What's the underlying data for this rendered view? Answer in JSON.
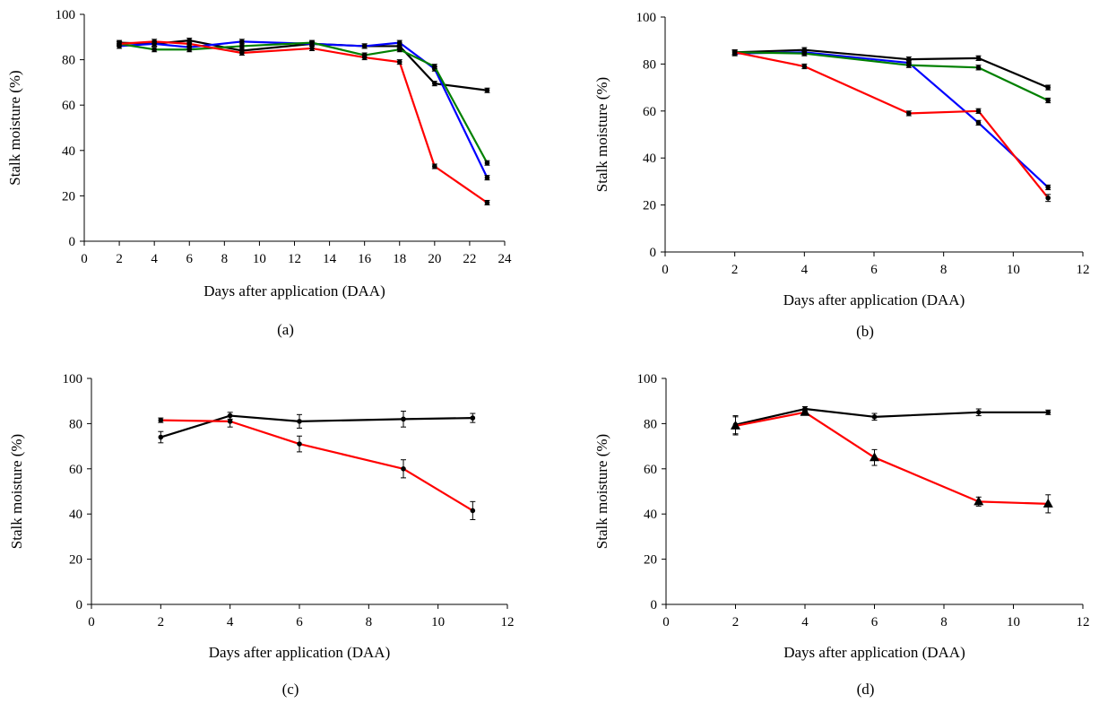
{
  "chart_data": [
    {
      "panel": "(a)",
      "type": "line",
      "xlabel": "Days after application (DAA)",
      "ylabel": "Stalk moisture (%)",
      "xlim": [
        0,
        24
      ],
      "xticks": [
        0,
        2,
        4,
        6,
        8,
        10,
        12,
        14,
        16,
        18,
        20,
        22,
        24
      ],
      "ylim": [
        0,
        100
      ],
      "yticks": [
        0,
        20,
        40,
        60,
        80,
        100
      ],
      "grid": false,
      "series": [
        {
          "color": "#000000",
          "x": [
            2,
            4,
            6,
            9,
            13,
            16,
            18,
            20,
            23
          ],
          "y": [
            87.5,
            87,
            88.5,
            84,
            87,
            86,
            86,
            69.5,
            66.5
          ],
          "err": [
            1,
            1,
            1,
            1,
            1,
            1,
            1,
            1,
            1
          ],
          "marker": "dot"
        },
        {
          "color": "#0000ff",
          "x": [
            2,
            4,
            6,
            9,
            13,
            16,
            18,
            20,
            23
          ],
          "y": [
            86,
            87,
            85.5,
            88,
            87,
            86,
            87.5,
            76,
            28
          ],
          "err": [
            1,
            1,
            1,
            1,
            1,
            1,
            1,
            1,
            1
          ],
          "marker": "dot"
        },
        {
          "color": "#008000",
          "x": [
            2,
            4,
            6,
            9,
            13,
            16,
            18,
            20,
            23
          ],
          "y": [
            87,
            84.5,
            84.5,
            86,
            87.5,
            82,
            84.5,
            77,
            34.5
          ],
          "err": [
            1,
            1,
            1,
            1,
            1,
            1,
            1,
            1,
            1
          ],
          "marker": "dot"
        },
        {
          "color": "#ff0000",
          "x": [
            2,
            4,
            6,
            9,
            13,
            16,
            18,
            20,
            23
          ],
          "y": [
            87,
            88,
            87,
            83,
            85,
            81,
            79,
            33,
            17
          ],
          "err": [
            1,
            1,
            1,
            1,
            1,
            1,
            1,
            1,
            1
          ],
          "marker": "dot"
        }
      ]
    },
    {
      "panel": "(b)",
      "type": "line",
      "xlabel": "Days after application (DAA)",
      "ylabel": "Stalk moisture (%)",
      "xlim": [
        0,
        12
      ],
      "xticks": [
        0,
        2,
        4,
        6,
        8,
        10,
        12
      ],
      "ylim": [
        0,
        100
      ],
      "yticks": [
        0,
        20,
        40,
        60,
        80,
        100
      ],
      "grid": false,
      "series": [
        {
          "color": "#000000",
          "x": [
            2,
            4,
            7,
            9,
            11
          ],
          "y": [
            85,
            86,
            82,
            82.5,
            70
          ],
          "err": [
            1,
            1,
            1,
            1,
            1
          ],
          "marker": "dot"
        },
        {
          "color": "#0000ff",
          "x": [
            2,
            4,
            7,
            9,
            11
          ],
          "y": [
            84.5,
            85,
            80.5,
            55,
            27.5
          ],
          "err": [
            1,
            1,
            1,
            1,
            1
          ],
          "marker": "dot"
        },
        {
          "color": "#008000",
          "x": [
            2,
            4,
            7,
            9,
            11
          ],
          "y": [
            85,
            84.5,
            79.5,
            78.5,
            64.5
          ],
          "err": [
            1,
            1,
            1,
            1,
            1
          ],
          "marker": "dot"
        },
        {
          "color": "#ff0000",
          "x": [
            2,
            4,
            7,
            9,
            11
          ],
          "y": [
            85,
            79,
            59,
            60,
            23
          ],
          "err": [
            1,
            1,
            1,
            1,
            1.5
          ],
          "marker": "dot"
        }
      ]
    },
    {
      "panel": "(c)",
      "type": "line",
      "xlabel": "Days after application (DAA)",
      "ylabel": "Stalk moisture (%)",
      "xlim": [
        0,
        12
      ],
      "xticks": [
        0,
        2,
        4,
        6,
        8,
        10,
        12
      ],
      "ylim": [
        0,
        100
      ],
      "yticks": [
        0,
        20,
        40,
        60,
        80,
        100
      ],
      "grid": false,
      "series": [
        {
          "color": "#000000",
          "x": [
            2,
            4,
            6,
            9,
            11
          ],
          "y": [
            74,
            83.5,
            81,
            82,
            82.5
          ],
          "err": [
            2.5,
            1.5,
            3,
            3.5,
            2
          ],
          "marker": "dot"
        },
        {
          "color": "#ff0000",
          "x": [
            2,
            4,
            6,
            9,
            11
          ],
          "y": [
            81.5,
            81,
            71,
            60,
            41.5
          ],
          "err": [
            1,
            2.5,
            3.5,
            4,
            4
          ],
          "marker": "dot"
        }
      ]
    },
    {
      "panel": "(d)",
      "type": "line",
      "xlabel": "Days after application (DAA)",
      "ylabel": "Stalk moisture (%)",
      "xlim": [
        0,
        12
      ],
      "xticks": [
        0,
        2,
        4,
        6,
        8,
        10,
        12
      ],
      "ylim": [
        0,
        100
      ],
      "yticks": [
        0,
        20,
        40,
        60,
        80,
        100
      ],
      "grid": false,
      "series": [
        {
          "color": "#000000",
          "x": [
            2,
            4,
            6,
            9,
            11
          ],
          "y": [
            79.5,
            86.5,
            83,
            85,
            85
          ],
          "err": [
            4,
            1,
            1.5,
            1.5,
            1
          ],
          "marker": "dot"
        },
        {
          "color": "#ff0000",
          "x": [
            2,
            4,
            6,
            9,
            11
          ],
          "y": [
            79,
            85,
            65,
            45.5,
            44.5
          ],
          "err": [
            4,
            1,
            3.5,
            2,
            4
          ],
          "marker": "triangle"
        }
      ]
    }
  ]
}
